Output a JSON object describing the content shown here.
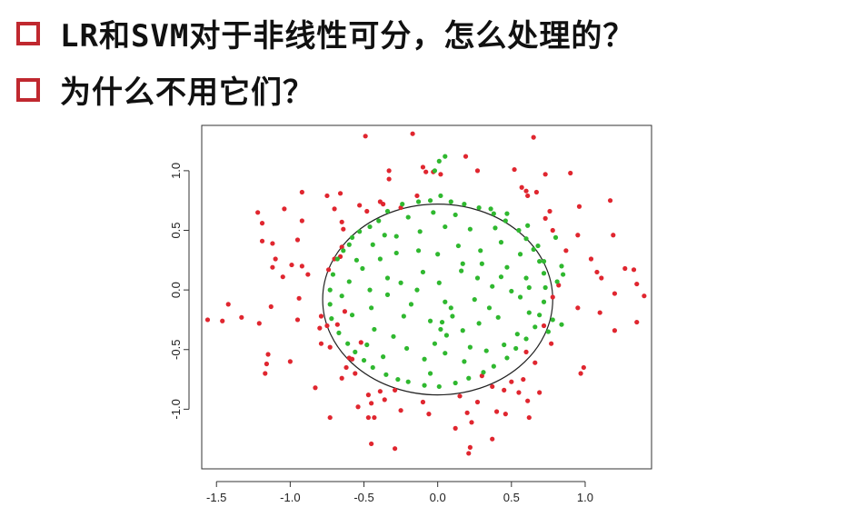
{
  "slide": {
    "bullets": [
      "LR和SVM对于非线性可分，怎么处理的？",
      "为什么不用它们？"
    ]
  },
  "colors": {
    "bullet_box": "#c0282f",
    "class_outside": "#e0262f",
    "class_inside": "#2fb82f",
    "boundary": "#222222"
  },
  "chart_data": {
    "type": "scatter",
    "title": "",
    "xlabel": "",
    "ylabel": "",
    "xlim": [
      -1.6,
      1.45
    ],
    "ylim": [
      -1.5,
      1.38
    ],
    "xticks": [
      -1.5,
      -1.0,
      -0.5,
      0.0,
      0.5,
      1.0
    ],
    "yticks": [
      -1.0,
      -0.5,
      0.0,
      0.5,
      1.0
    ],
    "xtick_labels": [
      "-1.5",
      "-1.0",
      "-0.5",
      "0.0",
      "0.5",
      "1.0"
    ],
    "ytick_labels": [
      "-1.0",
      "-0.5",
      "0.0",
      "0.5",
      "1.0"
    ],
    "decision_boundary": {
      "shape": "ellipse",
      "cx": 0.0,
      "cy": -0.08,
      "rx": 0.78,
      "ry": 0.8
    },
    "series": [
      {
        "color": "#e0262f",
        "points": [
          [
            -0.49,
            1.29
          ],
          [
            -0.17,
            1.31
          ],
          [
            0.65,
            1.28
          ],
          [
            -0.33,
            1.0
          ],
          [
            -0.08,
            0.99
          ],
          [
            -0.03,
            0.99
          ],
          [
            0.02,
            0.97
          ],
          [
            0.19,
            1.12
          ],
          [
            0.27,
            1.0
          ],
          [
            0.52,
            1.01
          ],
          [
            0.73,
            0.97
          ],
          [
            0.9,
            0.98
          ],
          [
            0.57,
            0.86
          ],
          [
            0.6,
            0.83
          ],
          [
            0.61,
            0.79
          ],
          [
            0.67,
            0.82
          ],
          [
            0.73,
            0.6
          ],
          [
            0.76,
            0.66
          ],
          [
            0.96,
            0.7
          ],
          [
            1.17,
            0.75
          ],
          [
            0.78,
            0.5
          ],
          [
            0.95,
            0.46
          ],
          [
            1.19,
            0.46
          ],
          [
            0.87,
            0.33
          ],
          [
            1.04,
            0.26
          ],
          [
            1.27,
            0.18
          ],
          [
            1.08,
            0.15
          ],
          [
            1.33,
            0.17
          ],
          [
            0.82,
            0.04
          ],
          [
            1.11,
            0.1
          ],
          [
            1.35,
            0.05
          ],
          [
            1.4,
            -0.05
          ],
          [
            1.2,
            -0.03
          ],
          [
            0.78,
            -0.06
          ],
          [
            0.95,
            -0.15
          ],
          [
            1.1,
            -0.19
          ],
          [
            1.2,
            -0.34
          ],
          [
            1.35,
            -0.27
          ],
          [
            0.72,
            -0.3
          ],
          [
            0.77,
            -0.45
          ],
          [
            0.6,
            -0.52
          ],
          [
            0.99,
            -0.65
          ],
          [
            0.97,
            -0.7
          ],
          [
            0.66,
            -0.61
          ],
          [
            0.58,
            -0.75
          ],
          [
            0.5,
            -0.77
          ],
          [
            0.55,
            -0.86
          ],
          [
            0.45,
            -0.84
          ],
          [
            0.3,
            -0.72
          ],
          [
            0.37,
            -0.81
          ],
          [
            0.15,
            -0.89
          ],
          [
            0.27,
            -0.94
          ],
          [
            0.2,
            -1.03
          ],
          [
            0.46,
            -1.04
          ],
          [
            0.61,
            -0.93
          ],
          [
            0.62,
            -1.07
          ],
          [
            0.69,
            -0.86
          ],
          [
            0.4,
            -1.02
          ],
          [
            0.23,
            -1.11
          ],
          [
            0.37,
            -1.25
          ],
          [
            0.22,
            -1.32
          ],
          [
            0.21,
            -1.37
          ],
          [
            -0.06,
            -1.04
          ],
          [
            -0.1,
            -0.94
          ],
          [
            -0.25,
            -1.01
          ],
          [
            -0.43,
            -1.07
          ],
          [
            -0.45,
            -0.95
          ],
          [
            -0.47,
            -0.88
          ],
          [
            -0.39,
            -0.85
          ],
          [
            -0.29,
            -0.84
          ],
          [
            -0.54,
            -0.98
          ],
          [
            -0.47,
            -1.07
          ],
          [
            -0.73,
            -1.07
          ],
          [
            -0.65,
            -0.74
          ],
          [
            -0.62,
            -0.65
          ],
          [
            -0.6,
            -0.57
          ],
          [
            -0.73,
            -0.48
          ],
          [
            -0.79,
            -0.45
          ],
          [
            -0.83,
            -0.82
          ],
          [
            -0.8,
            -0.32
          ],
          [
            -0.75,
            -0.3
          ],
          [
            -0.79,
            -0.22
          ],
          [
            -1.15,
            -0.54
          ],
          [
            -1.17,
            -0.7
          ],
          [
            -1.16,
            -0.62
          ],
          [
            -1.0,
            -0.6
          ],
          [
            -1.33,
            -0.23
          ],
          [
            -1.13,
            -0.14
          ],
          [
            -1.21,
            -0.28
          ],
          [
            -1.46,
            -0.26
          ],
          [
            -1.56,
            -0.25
          ],
          [
            -1.42,
            -0.12
          ],
          [
            -0.95,
            -0.25
          ],
          [
            -0.94,
            -0.07
          ],
          [
            -1.05,
            0.11
          ],
          [
            -1.12,
            0.19
          ],
          [
            -1.1,
            0.26
          ],
          [
            -1.12,
            0.39
          ],
          [
            -1.19,
            0.41
          ],
          [
            -1.19,
            0.56
          ],
          [
            -1.22,
            0.65
          ],
          [
            -0.92,
            0.58
          ],
          [
            -0.95,
            0.42
          ],
          [
            -0.92,
            0.2
          ],
          [
            -0.99,
            0.21
          ],
          [
            -0.88,
            0.13
          ],
          [
            -1.04,
            0.68
          ],
          [
            -0.92,
            0.82
          ],
          [
            -0.75,
            0.79
          ],
          [
            -0.7,
            0.68
          ],
          [
            -0.65,
            0.57
          ],
          [
            -0.64,
            0.51
          ],
          [
            -0.65,
            0.36
          ],
          [
            -0.7,
            0.26
          ],
          [
            -0.66,
            0.28
          ],
          [
            -0.74,
            0.17
          ],
          [
            -0.66,
            0.81
          ],
          [
            -0.53,
            0.71
          ],
          [
            -0.48,
            0.66
          ],
          [
            -0.39,
            0.74
          ],
          [
            -0.37,
            0.72
          ],
          [
            -0.33,
            0.93
          ],
          [
            -0.25,
            0.69
          ],
          [
            -0.14,
            0.79
          ],
          [
            -0.1,
            1.03
          ],
          [
            -0.52,
            -0.44
          ],
          [
            -0.63,
            -0.18
          ],
          [
            -0.68,
            -0.29
          ],
          [
            -0.45,
            -1.29
          ],
          [
            -0.29,
            -1.33
          ],
          [
            -0.58,
            -0.58
          ],
          [
            -0.36,
            -0.92
          ],
          [
            -0.56,
            -0.7
          ],
          [
            0.12,
            -1.16
          ]
        ]
      },
      {
        "color": "#2fb82f",
        "points": [
          [
            0.05,
            1.12
          ],
          [
            0.01,
            1.08
          ],
          [
            -0.02,
            1.0
          ],
          [
            0.02,
            0.79
          ],
          [
            -0.05,
            0.75
          ],
          [
            -0.13,
            0.74
          ],
          [
            -0.24,
            0.72
          ],
          [
            -0.34,
            0.66
          ],
          [
            -0.4,
            0.58
          ],
          [
            -0.46,
            0.53
          ],
          [
            -0.53,
            0.49
          ],
          [
            -0.58,
            0.44
          ],
          [
            -0.6,
            0.38
          ],
          [
            -0.64,
            0.33
          ],
          [
            -0.68,
            0.26
          ],
          [
            -0.71,
            0.13
          ],
          [
            -0.73,
            0.0
          ],
          [
            -0.73,
            -0.12
          ],
          [
            -0.72,
            -0.24
          ],
          [
            -0.67,
            -0.36
          ],
          [
            -0.61,
            -0.45
          ],
          [
            -0.56,
            -0.52
          ],
          [
            -0.5,
            -0.59
          ],
          [
            -0.44,
            -0.65
          ],
          [
            -0.35,
            -0.71
          ],
          [
            -0.27,
            -0.75
          ],
          [
            -0.2,
            -0.77
          ],
          [
            -0.09,
            -0.8
          ],
          [
            0.01,
            -0.81
          ],
          [
            0.12,
            -0.78
          ],
          [
            0.21,
            -0.74
          ],
          [
            0.31,
            -0.69
          ],
          [
            0.38,
            -0.64
          ],
          [
            0.47,
            -0.57
          ],
          [
            0.53,
            -0.49
          ],
          [
            0.6,
            -0.41
          ],
          [
            0.66,
            -0.31
          ],
          [
            0.69,
            -0.21
          ],
          [
            0.72,
            -0.1
          ],
          [
            0.73,
            0.02
          ],
          [
            0.72,
            0.14
          ],
          [
            0.69,
            0.24
          ],
          [
            0.65,
            0.34
          ],
          [
            0.6,
            0.43
          ],
          [
            0.55,
            0.5
          ],
          [
            0.46,
            0.58
          ],
          [
            0.38,
            0.64
          ],
          [
            0.28,
            0.69
          ],
          [
            0.18,
            0.72
          ],
          [
            0.09,
            0.74
          ],
          [
            0.72,
            0.24
          ],
          [
            0.61,
            0.54
          ],
          [
            0.8,
            0.44
          ],
          [
            0.81,
            0.07
          ],
          [
            0.84,
            0.2
          ],
          [
            0.78,
            -0.25
          ],
          [
            0.75,
            -0.35
          ],
          [
            0.84,
            -0.29
          ],
          [
            0.85,
            0.13
          ],
          [
            0.43,
            0.11
          ],
          [
            0.27,
            0.1
          ],
          [
            0.37,
            0.03
          ],
          [
            0.5,
            -0.01
          ],
          [
            0.56,
            -0.06
          ],
          [
            0.62,
            0.02
          ],
          [
            -0.46,
            0.0
          ],
          [
            -0.34,
            -0.04
          ],
          [
            -0.25,
            0.06
          ],
          [
            -0.1,
            0.15
          ],
          [
            0.01,
            0.06
          ],
          [
            -0.18,
            -0.12
          ],
          [
            -0.05,
            -0.26
          ],
          [
            0.1,
            -0.22
          ],
          [
            0.17,
            -0.34
          ],
          [
            0.28,
            -0.28
          ],
          [
            0.41,
            -0.23
          ],
          [
            0.54,
            -0.37
          ],
          [
            -0.43,
            -0.33
          ],
          [
            -0.3,
            -0.39
          ],
          [
            -0.21,
            -0.49
          ],
          [
            -0.09,
            -0.58
          ],
          [
            0.05,
            -0.53
          ],
          [
            0.18,
            -0.6
          ],
          [
            0.33,
            -0.51
          ],
          [
            -0.51,
            0.18
          ],
          [
            -0.39,
            0.26
          ],
          [
            -0.28,
            0.31
          ],
          [
            -0.13,
            0.33
          ],
          [
            0.0,
            0.3
          ],
          [
            0.14,
            0.37
          ],
          [
            0.29,
            0.33
          ],
          [
            0.43,
            0.4
          ],
          [
            -0.28,
            0.45
          ],
          [
            -0.12,
            0.49
          ],
          [
            0.05,
            0.53
          ],
          [
            0.22,
            0.51
          ],
          [
            0.39,
            0.52
          ],
          [
            -0.44,
            0.38
          ],
          [
            -0.55,
            0.25
          ],
          [
            0.03,
            -0.27
          ],
          [
            0.06,
            -0.38
          ],
          [
            -0.02,
            -0.45
          ],
          [
            0.09,
            -0.15
          ],
          [
            0.02,
            -0.33
          ],
          [
            -0.34,
            0.1
          ],
          [
            -0.65,
            -0.05
          ],
          [
            -0.58,
            -0.21
          ],
          [
            -0.48,
            -0.46
          ],
          [
            -0.37,
            -0.56
          ],
          [
            0.16,
            0.16
          ],
          [
            0.3,
            0.22
          ],
          [
            0.47,
            0.19
          ],
          [
            0.56,
            0.3
          ],
          [
            -0.2,
            0.61
          ],
          [
            0.12,
            0.63
          ],
          [
            0.47,
            0.64
          ],
          [
            -0.05,
            -0.7
          ],
          [
            0.22,
            -0.48
          ],
          [
            0.45,
            -0.46
          ],
          [
            0.62,
            -0.19
          ],
          [
            -0.23,
            -0.22
          ],
          [
            -0.14,
            0.0
          ],
          [
            0.25,
            -0.08
          ],
          [
            0.35,
            -0.15
          ],
          [
            -0.36,
            0.46
          ],
          [
            -0.6,
            0.07
          ],
          [
            0.68,
            0.37
          ],
          [
            0.36,
            0.68
          ],
          [
            -0.03,
            0.65
          ],
          [
            0.6,
            0.1
          ],
          [
            0.17,
            0.22
          ],
          [
            -0.45,
            -0.15
          ],
          [
            0.05,
            -0.1
          ]
        ]
      }
    ]
  }
}
